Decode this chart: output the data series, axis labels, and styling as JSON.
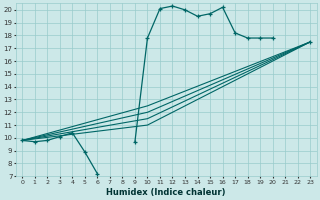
{
  "xlabel": "Humidex (Indice chaleur)",
  "bg_color": "#cce8e8",
  "grid_color": "#99cccc",
  "line_color": "#006666",
  "xlim": [
    -0.5,
    23.5
  ],
  "ylim": [
    7,
    20.5
  ],
  "xticks": [
    0,
    1,
    2,
    3,
    4,
    5,
    6,
    7,
    8,
    9,
    10,
    11,
    12,
    13,
    14,
    15,
    16,
    17,
    18,
    19,
    20,
    21,
    22,
    23
  ],
  "yticks": [
    7,
    8,
    9,
    10,
    11,
    12,
    13,
    14,
    15,
    16,
    17,
    18,
    19,
    20
  ],
  "main_line": {
    "x": [
      0,
      1,
      2,
      3,
      4,
      5,
      6,
      7,
      8,
      9,
      10,
      11,
      12,
      13,
      14,
      15,
      16,
      17,
      18,
      19,
      20,
      22,
      23
    ],
    "y": [
      9.8,
      9.7,
      9.8,
      10.1,
      10.4,
      8.9,
      7.2,
      null,
      null,
      9.7,
      17.8,
      20.1,
      20.3,
      20.0,
      19.5,
      19.7,
      20.2,
      18.2,
      17.8,
      17.8,
      17.8,
      null,
      17.5
    ]
  },
  "fan_lines": [
    {
      "x": [
        0,
        10,
        23
      ],
      "y": [
        9.8,
        11.0,
        17.5
      ]
    },
    {
      "x": [
        0,
        10,
        23
      ],
      "y": [
        9.8,
        11.5,
        17.5
      ]
    },
    {
      "x": [
        0,
        10,
        23
      ],
      "y": [
        9.8,
        12.0,
        17.5
      ]
    },
    {
      "x": [
        0,
        10,
        23
      ],
      "y": [
        9.8,
        12.5,
        17.5
      ]
    }
  ]
}
